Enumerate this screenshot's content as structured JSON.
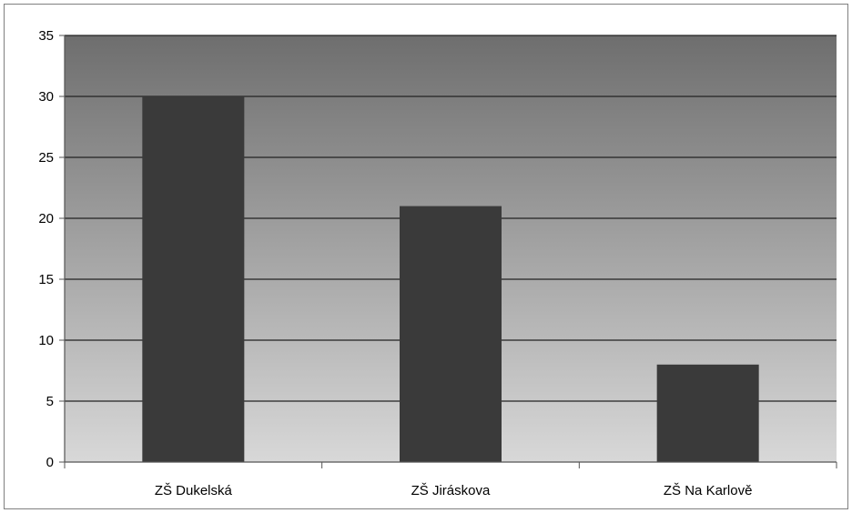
{
  "chart_data": {
    "type": "bar",
    "title": "",
    "xlabel": "",
    "ylabel": "",
    "categories": [
      "ZŠ Dukelská",
      "ZŠ Jiráskova",
      "ZŠ Na Karlově"
    ],
    "values": [
      30,
      21,
      8
    ],
    "ylim": [
      0,
      35
    ],
    "yticks": [
      "0",
      "5",
      "10",
      "15",
      "20",
      "25",
      "30",
      "35"
    ],
    "grid": true,
    "legend": "none",
    "colors": {
      "bar": "#3a3a3a",
      "plot_top": "#6e6e6e",
      "plot_bottom": "#d8d8d8",
      "gridline": "#222222",
      "axis": "#555555"
    }
  }
}
